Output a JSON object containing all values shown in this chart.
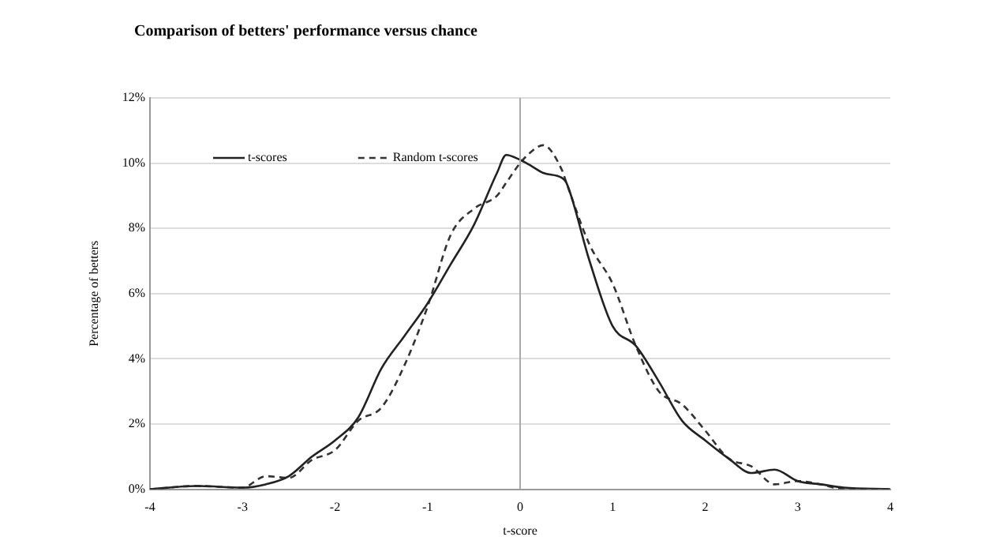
{
  "chart_data": {
    "type": "line",
    "title": "Comparison of betters' performance versus chance",
    "xlabel": "t-score",
    "ylabel": "Percentage of betters",
    "x": [
      -4,
      -3.5,
      -3,
      -2.75,
      -2.5,
      -2.25,
      -2,
      -1.75,
      -1.5,
      -1.25,
      -1,
      -0.75,
      -0.5,
      -0.25,
      -0.15,
      0,
      0.1,
      0.25,
      0.45,
      0.5,
      0.75,
      1,
      1.25,
      1.5,
      1.75,
      2,
      2.25,
      2.5,
      2.75,
      3,
      3.25,
      3.5,
      4
    ],
    "series": [
      {
        "name": "t-scores",
        "color": "#222222",
        "line_style": "solid",
        "values": [
          0,
          0.1,
          0.05,
          0.15,
          0.4,
          1.0,
          1.5,
          2.2,
          3.7,
          4.7,
          5.7,
          6.9,
          8.1,
          9.7,
          10.25,
          10.1,
          9.95,
          9.7,
          9.55,
          9.4,
          7.0,
          5.0,
          4.4,
          3.3,
          2.1,
          1.5,
          0.95,
          0.5,
          0.6,
          0.25,
          0.15,
          0.05,
          0
        ]
      },
      {
        "name": "Random t-scores",
        "color": "#333333",
        "line_style": "dashed",
        "values": [
          0,
          0.1,
          0.05,
          0.4,
          0.35,
          0.9,
          1.2,
          2.1,
          2.5,
          3.8,
          5.6,
          7.8,
          8.6,
          9.0,
          9.4,
          10.0,
          10.3,
          10.55,
          9.8,
          9.4,
          7.5,
          6.3,
          4.4,
          3.0,
          2.6,
          1.8,
          0.95,
          0.7,
          0.15,
          0.25,
          0.15,
          0,
          0
        ]
      }
    ],
    "xlim": [
      -4,
      4
    ],
    "xticks": [
      -4,
      -3,
      -2,
      -1,
      0,
      1,
      2,
      3,
      4
    ],
    "ylim": [
      0,
      12
    ],
    "yticks": [
      {
        "value": 0,
        "label": "0%"
      },
      {
        "value": 2,
        "label": "2%"
      },
      {
        "value": 4,
        "label": "4%"
      },
      {
        "value": 6,
        "label": "6%"
      },
      {
        "value": 8,
        "label": "8%"
      },
      {
        "value": 10,
        "label": "10%"
      },
      {
        "value": 12,
        "label": "12%"
      }
    ],
    "ref_lines": [
      {
        "axis": "x",
        "value": 0,
        "color": "#aaaaaa"
      }
    ],
    "grid": "y",
    "legend": "top left",
    "marker": "none"
  }
}
